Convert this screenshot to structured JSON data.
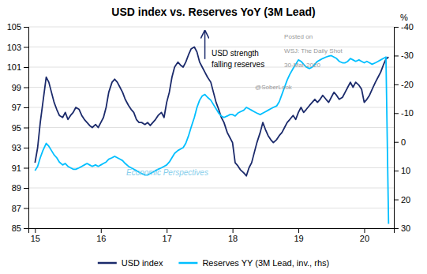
{
  "chart_data": {
    "type": "line",
    "title": "USD index vs. Reserves YoY (3M Lead)",
    "x": [
      15.0,
      15.04,
      15.08,
      15.12,
      15.17,
      15.21,
      15.25,
      15.29,
      15.33,
      15.37,
      15.42,
      15.46,
      15.5,
      15.54,
      15.58,
      15.62,
      15.67,
      15.71,
      15.75,
      15.79,
      15.83,
      15.87,
      15.92,
      15.96,
      16.0,
      16.04,
      16.08,
      16.12,
      16.17,
      16.21,
      16.25,
      16.29,
      16.33,
      16.37,
      16.42,
      16.46,
      16.5,
      16.54,
      16.58,
      16.62,
      16.67,
      16.71,
      16.75,
      16.79,
      16.83,
      16.87,
      16.92,
      16.96,
      17.0,
      17.04,
      17.08,
      17.12,
      17.17,
      17.21,
      17.25,
      17.29,
      17.33,
      17.37,
      17.42,
      17.46,
      17.5,
      17.54,
      17.58,
      17.62,
      17.67,
      17.71,
      17.75,
      17.79,
      17.83,
      17.87,
      17.92,
      17.96,
      18.0,
      18.04,
      18.08,
      18.12,
      18.17,
      18.21,
      18.25,
      18.29,
      18.33,
      18.37,
      18.42,
      18.46,
      18.5,
      18.54,
      18.58,
      18.62,
      18.67,
      18.71,
      18.75,
      18.79,
      18.83,
      18.87,
      18.92,
      18.96,
      19.0,
      19.04,
      19.08,
      19.12,
      19.17,
      19.21,
      19.25,
      19.29,
      19.33,
      19.37,
      19.42,
      19.46,
      19.5,
      19.54,
      19.58,
      19.62,
      19.67,
      19.71,
      19.75,
      19.79,
      19.83,
      19.87,
      19.92,
      19.96,
      20.0,
      20.04,
      20.08,
      20.12,
      20.17,
      20.21,
      20.25,
      20.29,
      20.33,
      20.37
    ],
    "xlim": [
      14.9,
      20.45
    ],
    "xticks": [
      15,
      16,
      17,
      18,
      19,
      20
    ],
    "ylim": [
      85,
      105
    ],
    "yticks": [
      85,
      87,
      89,
      91,
      93,
      95,
      97,
      99,
      101,
      103,
      105
    ],
    "y2lim": [
      30,
      -40
    ],
    "y2ticks": [
      30,
      20,
      10,
      0,
      -10,
      -20,
      -30,
      -40
    ],
    "y2label": "%",
    "grid": true,
    "legend": "bottom",
    "series": [
      {
        "name": "USD index",
        "color": "#1b2a6b",
        "values": [
          91.5,
          93.0,
          95.5,
          97.5,
          100.0,
          99.5,
          98.5,
          97.5,
          96.8,
          96.2,
          96.0,
          96.5,
          95.8,
          96.2,
          96.5,
          97.0,
          96.8,
          96.2,
          95.8,
          95.5,
          95.2,
          95.0,
          95.3,
          95.0,
          95.5,
          96.0,
          97.0,
          98.5,
          99.5,
          99.8,
          99.5,
          99.0,
          98.5,
          97.8,
          97.2,
          96.8,
          96.5,
          95.8,
          95.5,
          95.5,
          95.3,
          95.5,
          95.2,
          95.5,
          95.8,
          96.2,
          96.5,
          96.0,
          97.5,
          98.5,
          100.0,
          101.0,
          101.5,
          101.2,
          101.0,
          101.5,
          102.2,
          102.8,
          103.0,
          102.5,
          101.5,
          101.0,
          100.5,
          100.0,
          99.5,
          98.5,
          97.5,
          96.8,
          96.0,
          95.5,
          94.5,
          94.0,
          93.5,
          91.5,
          91.2,
          90.8,
          90.5,
          90.2,
          91.0,
          91.5,
          92.5,
          93.5,
          94.5,
          95.5,
          94.8,
          94.2,
          93.8,
          93.5,
          93.8,
          94.2,
          94.5,
          95.0,
          95.5,
          95.8,
          96.2,
          95.8,
          96.5,
          97.0,
          96.5,
          96.8,
          97.2,
          97.5,
          97.8,
          97.5,
          97.8,
          98.2,
          97.8,
          97.5,
          98.0,
          98.5,
          98.2,
          97.8,
          98.0,
          98.5,
          99.0,
          99.5,
          99.0,
          99.5,
          99.2,
          98.8,
          97.5,
          97.8,
          98.2,
          98.8,
          99.5,
          100.0,
          100.5,
          101.2,
          101.8,
          102.0
        ]
      },
      {
        "name": "Reserves YY (3M Lead, inv., rhs)",
        "color": "#00bfff",
        "axis": "y2",
        "values": [
          10.0,
          8.5,
          5.5,
          3.0,
          0.5,
          1.5,
          3.0,
          4.5,
          5.5,
          7.0,
          8.0,
          7.5,
          8.5,
          9.0,
          9.5,
          9.5,
          9.0,
          8.5,
          8.0,
          7.5,
          8.0,
          8.5,
          8.0,
          8.5,
          8.0,
          7.5,
          7.0,
          6.0,
          5.5,
          5.0,
          5.5,
          6.0,
          6.5,
          7.5,
          8.5,
          9.0,
          9.5,
          10.0,
          10.5,
          11.0,
          11.5,
          11.5,
          11.0,
          10.5,
          10.0,
          9.5,
          9.0,
          8.5,
          8.0,
          7.0,
          5.5,
          4.0,
          3.0,
          2.5,
          2.0,
          0.5,
          -2.0,
          -5.0,
          -8.5,
          -12.0,
          -14.5,
          -16.0,
          -16.5,
          -15.5,
          -14.5,
          -13.0,
          -11.5,
          -10.0,
          -9.0,
          -8.5,
          -9.0,
          -9.5,
          -9.5,
          -9.0,
          -10.0,
          -10.5,
          -11.0,
          -12.0,
          -11.5,
          -11.0,
          -10.5,
          -10.0,
          -9.5,
          -10.0,
          -10.5,
          -11.0,
          -11.5,
          -12.0,
          -12.5,
          -14.0,
          -16.5,
          -19.0,
          -21.5,
          -23.5,
          -25.5,
          -27.0,
          -28.5,
          -28.0,
          -27.0,
          -26.0,
          -25.5,
          -26.0,
          -27.0,
          -28.0,
          -28.5,
          -29.0,
          -29.5,
          -29.8,
          -30.0,
          -29.5,
          -29.0,
          -28.0,
          -27.5,
          -27.5,
          -28.0,
          -29.0,
          -28.5,
          -28.0,
          -28.5,
          -28.0,
          -27.5,
          -28.0,
          -27.5,
          -27.0,
          -27.5,
          -28.0,
          -28.5,
          -29.0,
          -29.5,
          28.5
        ]
      }
    ],
    "annotations": [
      {
        "text": "USD strength\nfalling reserves",
        "x": 17.68,
        "y": 102.8,
        "arrow": {
          "x": 17.58,
          "y": [
            101.8,
            104.6
          ]
        }
      },
      {
        "text": "Posted on"
      },
      {
        "text": "WSJ: The Daily Shot"
      },
      {
        "text": "30-Mar-2020"
      },
      {
        "text": "@SoberLook"
      },
      {
        "text": "Economic Perspectives"
      }
    ]
  }
}
